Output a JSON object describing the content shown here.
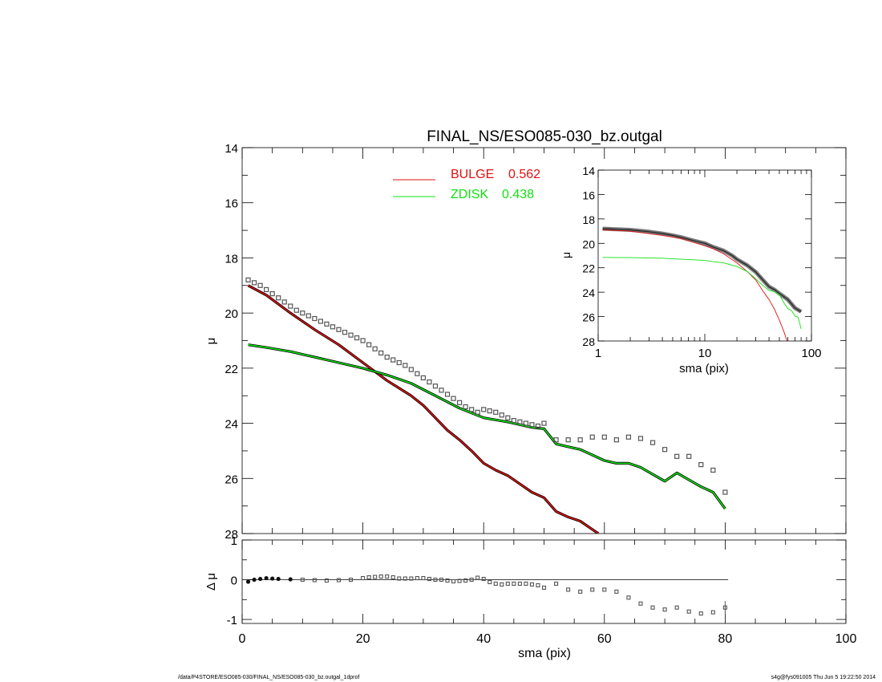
{
  "title": "FINAL_NS/ESO085-030_bz.outgal",
  "footer": {
    "left": "/data/P4STORE/ESO085-030/FINAL_NS/ESO085-030_bz.outgal_1dprof",
    "right": "s4g@fys091005  Thu Jun  5 19:22:50 2014"
  },
  "colors": {
    "bulge": "#e01010",
    "zdisk": "#10e010",
    "data": "#555555",
    "axis": "#000000"
  },
  "legend": [
    {
      "label": "BULGE",
      "value": "0.562",
      "color": "#e01010"
    },
    {
      "label": "ZDISK",
      "value": "0.438",
      "color": "#10e010"
    }
  ],
  "main": {
    "ylabel": "μ",
    "xlim": [
      0,
      100
    ],
    "ylim": [
      28,
      14
    ],
    "yticks": [
      "14",
      "16",
      "18",
      "20",
      "22",
      "24",
      "26",
      "28"
    ]
  },
  "residual": {
    "ylabel": "Δ μ",
    "xlabel": "sma (pix)",
    "xlim": [
      0,
      100
    ],
    "ylim": [
      -1.1,
      1.0
    ],
    "xticks": [
      "0",
      "20",
      "40",
      "60",
      "80",
      "100"
    ],
    "yticks": [
      "1",
      "0",
      "-1"
    ]
  },
  "inset": {
    "ylabel": "μ",
    "xlabel": "sma (pix)",
    "xscale": "log",
    "xlim": [
      1,
      100
    ],
    "ylim": [
      28,
      14
    ],
    "xticks": [
      "1",
      "10",
      "100"
    ],
    "yticks": [
      "14",
      "16",
      "18",
      "20",
      "22",
      "24",
      "26",
      "28"
    ]
  },
  "chart_data": [
    {
      "type": "line",
      "title": "FINAL_NS/ESO085-030_bz.outgal",
      "xlabel": "",
      "ylabel": "μ",
      "xlim": [
        0,
        100
      ],
      "ylim": [
        28,
        14
      ],
      "data_points": {
        "x": [
          1,
          2,
          3,
          4,
          5,
          6,
          7,
          8,
          9,
          10,
          11,
          12,
          13,
          14,
          15,
          16,
          17,
          18,
          19,
          20,
          21,
          22,
          23,
          24,
          25,
          26,
          27,
          28,
          29,
          30,
          31,
          32,
          33,
          34,
          35,
          36,
          37,
          38,
          39,
          40,
          41,
          42,
          43,
          44,
          45,
          46,
          47,
          48,
          49,
          50,
          52,
          54,
          56,
          58,
          60,
          62,
          64,
          66,
          68,
          70,
          72,
          74,
          76,
          78,
          80
        ],
        "y": [
          18.8,
          18.9,
          19.0,
          19.15,
          19.3,
          19.45,
          19.6,
          19.75,
          19.9,
          20.0,
          20.1,
          20.2,
          20.3,
          20.4,
          20.5,
          20.6,
          20.7,
          20.8,
          20.9,
          21.0,
          21.15,
          21.3,
          21.45,
          21.6,
          21.7,
          21.8,
          21.9,
          22.05,
          22.2,
          22.35,
          22.5,
          22.65,
          22.8,
          22.95,
          23.1,
          23.25,
          23.4,
          23.5,
          23.6,
          23.5,
          23.55,
          23.6,
          23.7,
          23.8,
          23.9,
          23.95,
          24.0,
          24.05,
          24.1,
          24.0,
          24.6,
          24.6,
          24.6,
          24.5,
          24.5,
          24.6,
          24.5,
          24.55,
          24.7,
          24.95,
          25.2,
          25.2,
          25.5,
          25.7,
          26.5
        ]
      },
      "series": [
        {
          "name": "BULGE 0.562",
          "x": [
            1,
            4,
            8,
            12,
            16,
            20,
            24,
            28,
            30,
            32,
            34,
            36,
            38,
            40,
            42,
            44,
            46,
            48,
            50,
            52,
            54,
            56,
            58,
            59
          ],
          "y": [
            19.0,
            19.35,
            20.0,
            20.6,
            21.15,
            21.8,
            22.45,
            23.0,
            23.35,
            23.8,
            24.25,
            24.6,
            25.0,
            25.45,
            25.7,
            25.9,
            26.2,
            26.5,
            26.7,
            27.2,
            27.4,
            27.55,
            27.85,
            28.0
          ]
        },
        {
          "name": "ZDISK 0.438",
          "x": [
            1,
            4,
            8,
            12,
            16,
            20,
            24,
            28,
            32,
            36,
            40,
            44,
            48,
            50,
            52,
            54,
            56,
            58,
            60,
            62,
            64,
            66,
            68,
            70,
            72,
            74,
            76,
            78,
            80
          ],
          "y": [
            21.15,
            21.25,
            21.4,
            21.6,
            21.8,
            22.0,
            22.25,
            22.55,
            23.0,
            23.45,
            23.8,
            23.95,
            24.15,
            24.2,
            24.75,
            24.85,
            24.95,
            25.15,
            25.35,
            25.45,
            25.45,
            25.6,
            25.85,
            26.1,
            25.8,
            26.05,
            26.3,
            26.5,
            27.1
          ]
        }
      ]
    },
    {
      "type": "scatter",
      "xlabel": "sma (pix)",
      "ylabel": "Δ μ",
      "xlim": [
        0,
        100
      ],
      "ylim": [
        -1.1,
        1.0
      ],
      "x": [
        1,
        2,
        3,
        4,
        5,
        6,
        8,
        10,
        12,
        14,
        16,
        18,
        20,
        21,
        22,
        23,
        24,
        25,
        26,
        27,
        28,
        29,
        30,
        31,
        32,
        33,
        34,
        35,
        36,
        37,
        38,
        39,
        40,
        41,
        42,
        43,
        44,
        45,
        46,
        47,
        48,
        49,
        50,
        52,
        54,
        56,
        58,
        60,
        62,
        64,
        66,
        68,
        70,
        72,
        74,
        76,
        78,
        80
      ],
      "y": [
        -0.05,
        0.0,
        0.02,
        0.04,
        0.03,
        0.02,
        0.01,
        0.0,
        -0.01,
        -0.02,
        -0.01,
        0.0,
        0.04,
        0.06,
        0.07,
        0.08,
        0.08,
        0.06,
        0.03,
        0.03,
        0.03,
        0.04,
        0.04,
        0.02,
        0.0,
        0.0,
        -0.02,
        -0.04,
        -0.03,
        -0.02,
        0.0,
        0.05,
        0.02,
        -0.06,
        -0.1,
        -0.12,
        -0.1,
        -0.1,
        -0.1,
        -0.1,
        -0.12,
        -0.14,
        -0.2,
        -0.1,
        -0.25,
        -0.3,
        -0.25,
        -0.25,
        -0.3,
        -0.45,
        -0.6,
        -0.7,
        -0.75,
        -0.7,
        -0.8,
        -0.85,
        -0.82,
        -0.7
      ]
    },
    {
      "type": "line",
      "xlabel": "sma (pix)",
      "ylabel": "μ",
      "xscale": "log",
      "xlim": [
        1,
        100
      ],
      "ylim": [
        28,
        14
      ],
      "data_points": {
        "x": [
          1.1,
          1.5,
          2,
          3,
          4,
          5,
          6,
          8,
          10,
          12,
          15,
          18,
          20,
          25,
          30,
          35,
          40,
          45,
          50,
          60,
          70,
          80
        ],
        "y": [
          18.8,
          18.85,
          18.9,
          19.05,
          19.2,
          19.35,
          19.5,
          19.8,
          20.0,
          20.3,
          20.6,
          21.0,
          21.3,
          21.8,
          22.35,
          23.0,
          23.55,
          23.8,
          24.1,
          24.6,
          25.3,
          25.6
        ]
      },
      "series": [
        {
          "name": "BULGE",
          "x": [
            1.1,
            2,
            4,
            6,
            8,
            10,
            12,
            15,
            20,
            25,
            30,
            35,
            40,
            45,
            50,
            55,
            59
          ],
          "y": [
            18.9,
            19.0,
            19.35,
            19.6,
            19.95,
            20.2,
            20.45,
            20.85,
            21.6,
            22.3,
            23.0,
            23.9,
            24.6,
            25.4,
            26.3,
            27.2,
            28.0
          ]
        },
        {
          "name": "ZDISK",
          "x": [
            1.1,
            2,
            4,
            6,
            8,
            10,
            12,
            15,
            20,
            25,
            30,
            35,
            40,
            45,
            50,
            55,
            60,
            65,
            70,
            75,
            80
          ],
          "y": [
            21.15,
            21.17,
            21.22,
            21.3,
            21.35,
            21.4,
            21.5,
            21.6,
            21.9,
            22.3,
            22.9,
            23.45,
            23.85,
            23.95,
            24.2,
            24.85,
            25.35,
            25.5,
            25.95,
            26.05,
            27.0
          ]
        }
      ]
    }
  ]
}
